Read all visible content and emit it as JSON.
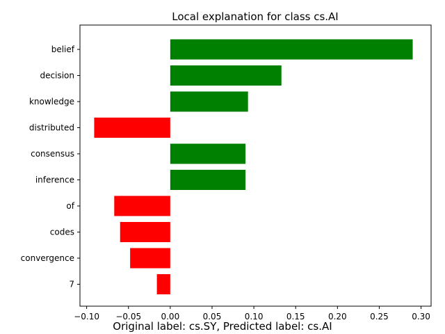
{
  "chart_data": {
    "type": "bar",
    "orientation": "horizontal",
    "title": "Local explanation for class cs.AI",
    "categories": [
      "belief",
      "decision",
      "knowledge",
      "distributed",
      "consensus",
      "inference",
      "of",
      "codes",
      "convergence",
      "7"
    ],
    "values": [
      0.29,
      0.133,
      0.093,
      -0.091,
      0.09,
      0.09,
      -0.067,
      -0.06,
      -0.048,
      -0.016
    ],
    "xlim": [
      -0.108,
      0.312
    ],
    "xticks": [
      -0.1,
      -0.05,
      0.0,
      0.05,
      0.1,
      0.15,
      0.2,
      0.25,
      0.3
    ],
    "xtick_labels": [
      "−0.10",
      "−0.05",
      "0.00",
      "0.05",
      "0.10",
      "0.15",
      "0.20",
      "0.25",
      "0.30"
    ],
    "xlabel": "",
    "ylabel": "",
    "grid": false,
    "colors": {
      "positive": "#008000",
      "negative": "#ff0000"
    },
    "caption": "Original label: cs.SY, Predicted label: cs.AI"
  }
}
